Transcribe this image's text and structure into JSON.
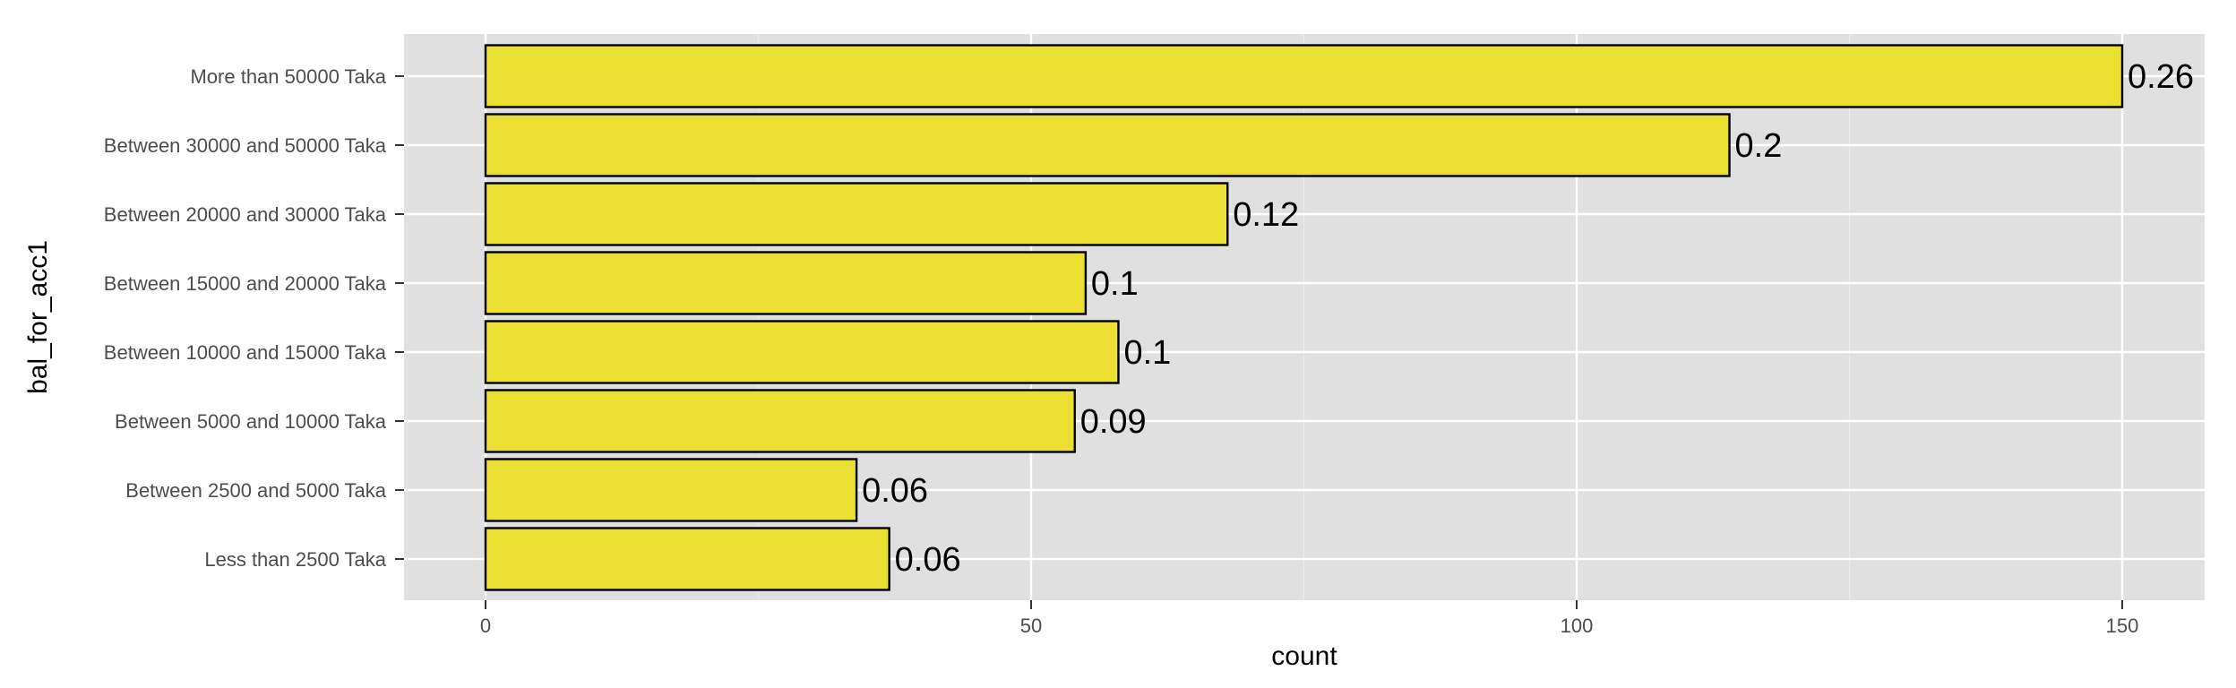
{
  "chart_data": {
    "type": "bar",
    "orientation": "horizontal",
    "categories": [
      "More than 50000 Taka",
      "Between 30000 and 50000 Taka",
      "Between 20000 and 30000 Taka",
      "Between 15000 and 20000 Taka",
      "Between 10000 and 15000 Taka",
      "Between 5000 and 10000 Taka",
      "Between 2500 and 5000 Taka",
      "Less than 2500 Taka"
    ],
    "values": [
      150,
      114,
      68,
      55,
      58,
      54,
      34,
      37
    ],
    "bar_labels": [
      "0.26",
      "0.2",
      "0.12",
      "0.1",
      "0.1",
      "0.09",
      "0.06",
      "0.06"
    ],
    "xlabel": "count",
    "ylabel": "bal_for_acc1",
    "xlim": [
      -7.5,
      157.5
    ],
    "x_ticks": [
      0,
      50,
      100,
      150
    ],
    "grid": true,
    "colors": {
      "bar_fill": "#ebe032",
      "bar_stroke": "#000000",
      "panel_bg": "#e0e0e0",
      "grid_major": "#ffffff",
      "grid_minor": "#ebebeb"
    }
  }
}
